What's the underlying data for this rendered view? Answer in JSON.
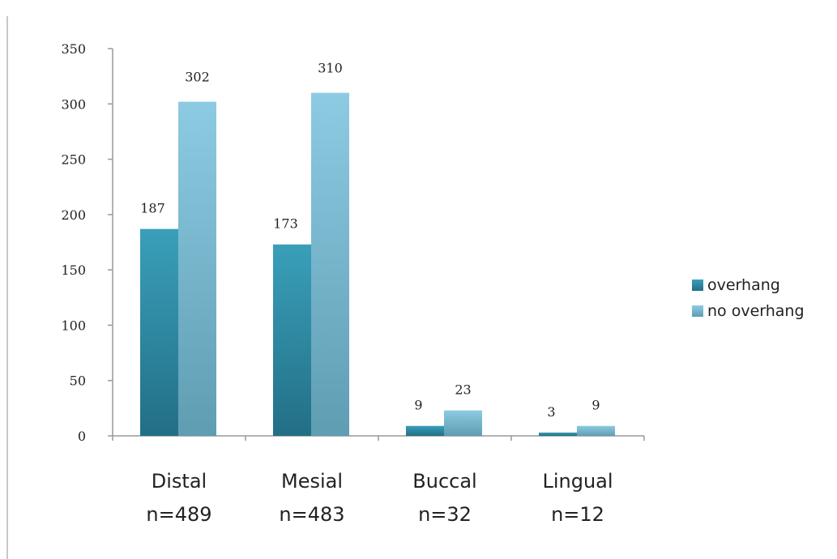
{
  "chart_data": {
    "type": "bar",
    "categories": [
      "Distal",
      "Mesial",
      "Buccal",
      "Lingual"
    ],
    "category_sublabels": [
      "n=489",
      "n=483",
      "n=32",
      "n=12"
    ],
    "series": [
      {
        "name": "overhang",
        "values": [
          187,
          173,
          9,
          3
        ],
        "color": "#2f8fa8"
      },
      {
        "name": "no overhang",
        "values": [
          302,
          310,
          23,
          9
        ],
        "color": "#7cbfd8"
      }
    ],
    "ylim": [
      0,
      350
    ],
    "yticks": [
      0,
      50,
      100,
      150,
      200,
      250,
      300,
      350
    ],
    "title": "",
    "xlabel": "",
    "ylabel": "",
    "grid": false,
    "legend_position": "right"
  }
}
